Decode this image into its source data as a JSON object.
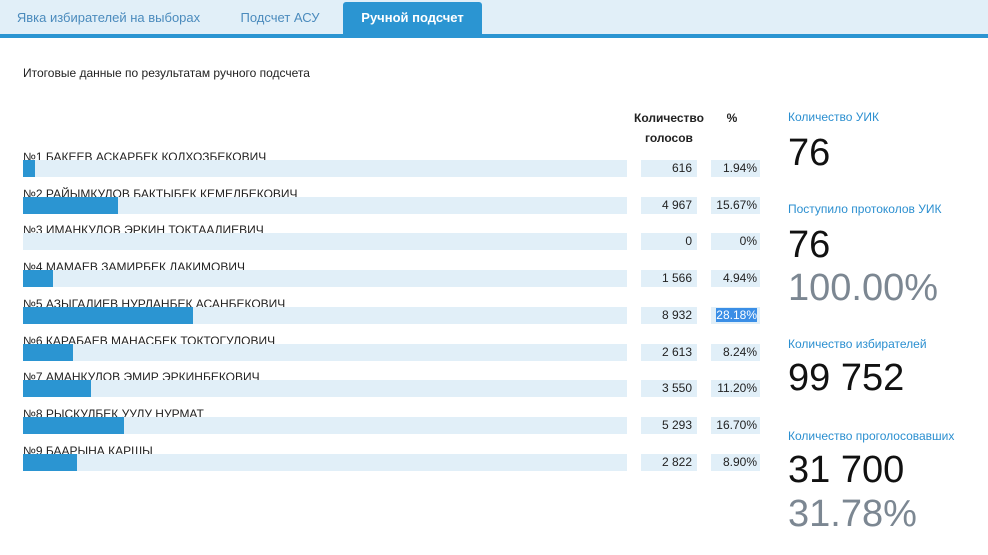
{
  "tabs": [
    {
      "label": "Явка избирателей на выборах"
    },
    {
      "label": "Подсчет АСУ"
    },
    {
      "label": "Ручной подсчет"
    }
  ],
  "title": "Итоговые данные по результатам ручного подсчета",
  "headers": {
    "votes_line1": "Количество",
    "votes_line2": "голосов",
    "percent": "%"
  },
  "candidates": [
    {
      "name": "№1 БАКЕЕВ АСКАРБЕК КОЛХОЗБЕКОВИЧ",
      "votes": "616",
      "percent": "1.94%",
      "share": 1.94
    },
    {
      "name": "№2 РАЙЫМКУЛОВ БАКТЫБЕК КЕМЕЛБЕКОВИЧ",
      "votes": "4 967",
      "percent": "15.67%",
      "share": 15.67
    },
    {
      "name": "№3 ИМАНКУЛОВ ЭРКИН ТОКТААЛИЕВИЧ",
      "votes": "0",
      "percent": "0%",
      "share": 0
    },
    {
      "name": "№4 МАМАЕВ ЗАМИРБЕК ДАКИМОВИЧ",
      "votes": "1 566",
      "percent": "4.94%",
      "share": 4.94
    },
    {
      "name": "№5 АЗЫГАЛИЕВ НУРЛАНБЕК АСАНБЕКОВИЧ",
      "votes": "8 932",
      "percent": "28.18%",
      "share": 28.18
    },
    {
      "name": "№6 КАРАБАЕВ МАНАСБЕК ТОКТОГУЛОВИЧ",
      "votes": "2 613",
      "percent": "8.24%",
      "share": 8.24
    },
    {
      "name": "№7 АМАНКУЛОВ ЭМИР ЭРКИНБЕКОВИЧ",
      "votes": "3 550",
      "percent": "11.20%",
      "share": 11.2
    },
    {
      "name": "№8 РЫСКУЛБЕК УУЛУ НУРМАТ",
      "votes": "5 293",
      "percent": "16.70%",
      "share": 16.7
    },
    {
      "name": "№9 БААРЫНА КАРШЫ",
      "votes": "2 822",
      "percent": "8.90%",
      "share": 8.9
    }
  ],
  "stats": {
    "uik_label": "Количество УИК",
    "uik_value": "76",
    "protocols_label": "Поступило протоколов УИК",
    "protocols_value": "76",
    "protocols_percent": "100.00%",
    "voters_label": "Количество избирателей",
    "voters_value": "99 752",
    "voted_label": "Количество проголосовавших",
    "voted_value": "31 700",
    "voted_percent": "31.78%"
  },
  "colors": {
    "accent": "#2b95d2",
    "light": "#e1eff8"
  }
}
